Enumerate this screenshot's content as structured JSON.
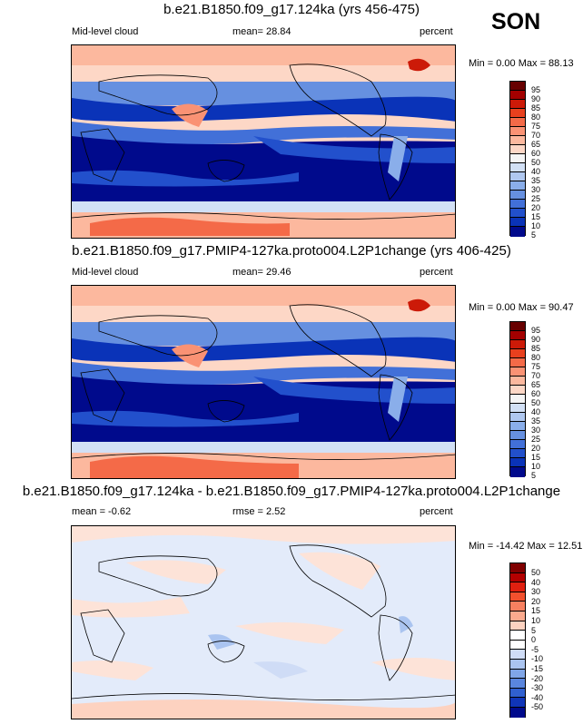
{
  "season": "SON",
  "panels": [
    {
      "title": "b.e21.B1850.f09_g17.124ka (yrs 456-475)",
      "left_label": "Mid-level cloud",
      "mid_label": "mean=  28.84",
      "right_label": "percent",
      "minmax": "Min =   0.00 Max =  88.13",
      "colorbar_labels": [
        "95",
        "90",
        "85",
        "80",
        "75",
        "70",
        "65",
        "60",
        "50",
        "40",
        "35",
        "30",
        "25",
        "20",
        "15",
        "10",
        "5"
      ]
    },
    {
      "title": "b.e21.B1850.f09_g17.PMIP4-127ka.proto004.L2P1change (yrs 406-425)",
      "left_label": "Mid-level cloud",
      "mid_label": "mean=  29.46",
      "right_label": "percent",
      "minmax": "Min =   0.00 Max =  90.47",
      "colorbar_labels": [
        "95",
        "90",
        "85",
        "80",
        "75",
        "70",
        "65",
        "60",
        "50",
        "40",
        "35",
        "30",
        "25",
        "20",
        "15",
        "10",
        "5"
      ]
    },
    {
      "title": "b.e21.B1850.f09_g17.124ka - b.e21.B1850.f09_g17.PMIP4-127ka.proto004.L2P1change",
      "left_label": "mean =  -0.62",
      "mid_label": "rmse =   2.52",
      "right_label": "percent",
      "minmax": "Min = -14.42 Max =  12.51",
      "colorbar_labels": [
        "50",
        "40",
        "30",
        "20",
        "15",
        "10",
        "5",
        "0",
        "-5",
        "-10",
        "-15",
        "-20",
        "-30",
        "-40",
        "-50"
      ]
    }
  ],
  "colors": {
    "abs_scale": [
      "#670000",
      "#a30000",
      "#cc1a08",
      "#e8401e",
      "#f46a48",
      "#fa9274",
      "#fcb89e",
      "#fdd7c6",
      "#f5f5f5",
      "#d2e0f5",
      "#b0c8f0",
      "#8aaeea",
      "#6690e0",
      "#4270d8",
      "#2250cc",
      "#0a33b8",
      "#000a8c"
    ],
    "diff_scale": [
      "#800000",
      "#b30000",
      "#e02010",
      "#f2502e",
      "#f78060",
      "#fbaa8e",
      "#fdd2c0",
      "#ffffff",
      "#ffffff",
      "#cfdcf6",
      "#aac4f0",
      "#80a6e8",
      "#5a86de",
      "#3060d0",
      "#1035b8",
      "#000a8c"
    ]
  }
}
